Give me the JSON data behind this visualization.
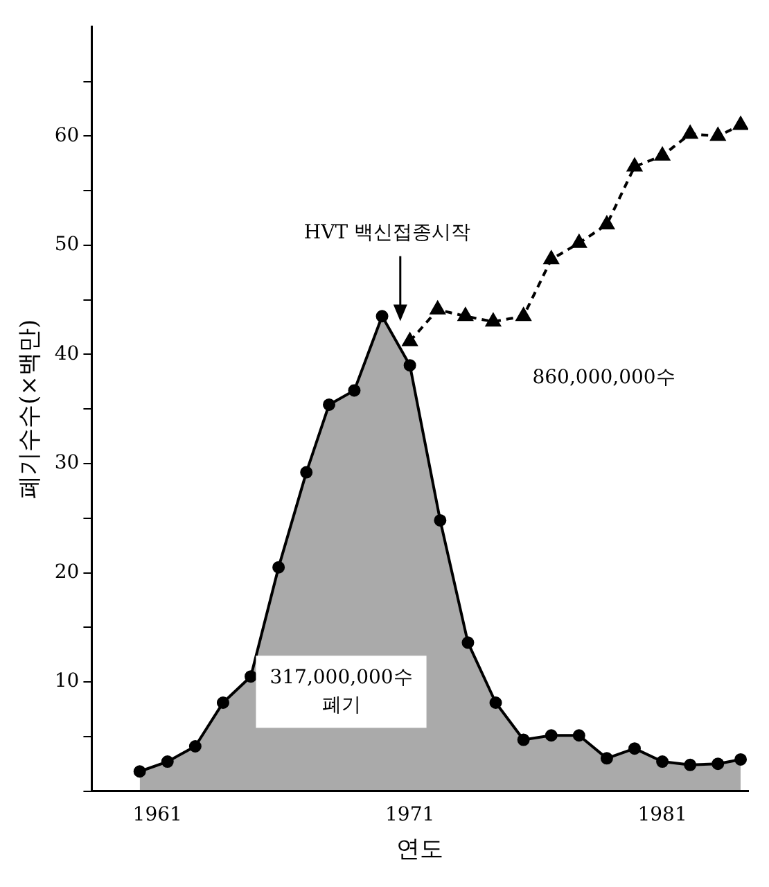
{
  "chart_data": {
    "type": "line",
    "xlabel": "연도",
    "ylabel": "폐기수수(×백만)",
    "xlim": [
      1958.4,
      1984.4
    ],
    "xticks": [
      1961,
      1971,
      1981
    ],
    "ylim": [
      0,
      70
    ],
    "yticks": [
      {
        "value": 0,
        "label": null
      },
      {
        "value": 5,
        "label": null
      },
      10,
      {
        "value": 15,
        "label": null
      },
      20,
      {
        "value": 25,
        "label": null
      },
      30,
      {
        "value": 35,
        "label": null
      },
      40,
      {
        "value": 45,
        "label": null
      },
      50,
      {
        "value": 55,
        "label": null
      },
      60,
      {
        "value": 65,
        "label": null
      }
    ],
    "grid": false,
    "legend": false,
    "series": [
      {
        "type": "area",
        "color": "#000000",
        "marker": "circle",
        "line_style": "solid",
        "x": [
          1960.3,
          1961.4,
          1962.5,
          1963.6,
          1964.7,
          1965.8,
          1966.9,
          1967.8,
          1968.8,
          1969.9,
          1971.0,
          1972.2,
          1973.3,
          1974.4,
          1975.5,
          1976.6,
          1977.7,
          1978.8,
          1979.9,
          1981.0,
          1982.1,
          1983.2,
          1984.1
        ],
        "values": [
          1.8,
          2.7,
          4.1,
          8.1,
          10.5,
          20.5,
          29.2,
          35.4,
          36.7,
          43.5,
          39.0,
          24.8,
          13.6,
          8.1,
          4.7,
          5.1,
          5.1,
          3.0,
          3.9,
          2.7,
          2.4,
          2.5,
          2.9
        ]
      },
      {
        "color": "#000000",
        "marker": "triangle",
        "line_style": "dashed",
        "x": [
          1971.0,
          1972.1,
          1973.2,
          1974.3,
          1975.5,
          1976.6,
          1977.7,
          1978.8,
          1979.9,
          1981.0,
          1982.1,
          1983.2,
          1984.1
        ],
        "values": [
          41.2,
          44.1,
          43.5,
          43.0,
          43.5,
          48.7,
          50.2,
          51.9,
          57.2,
          58.2,
          60.2,
          60.0,
          61.0
        ]
      }
    ],
    "annotations": [
      "HVT 백신접종시작",
      "860,000,000수",
      "317,000,000수\n폐기"
    ]
  }
}
